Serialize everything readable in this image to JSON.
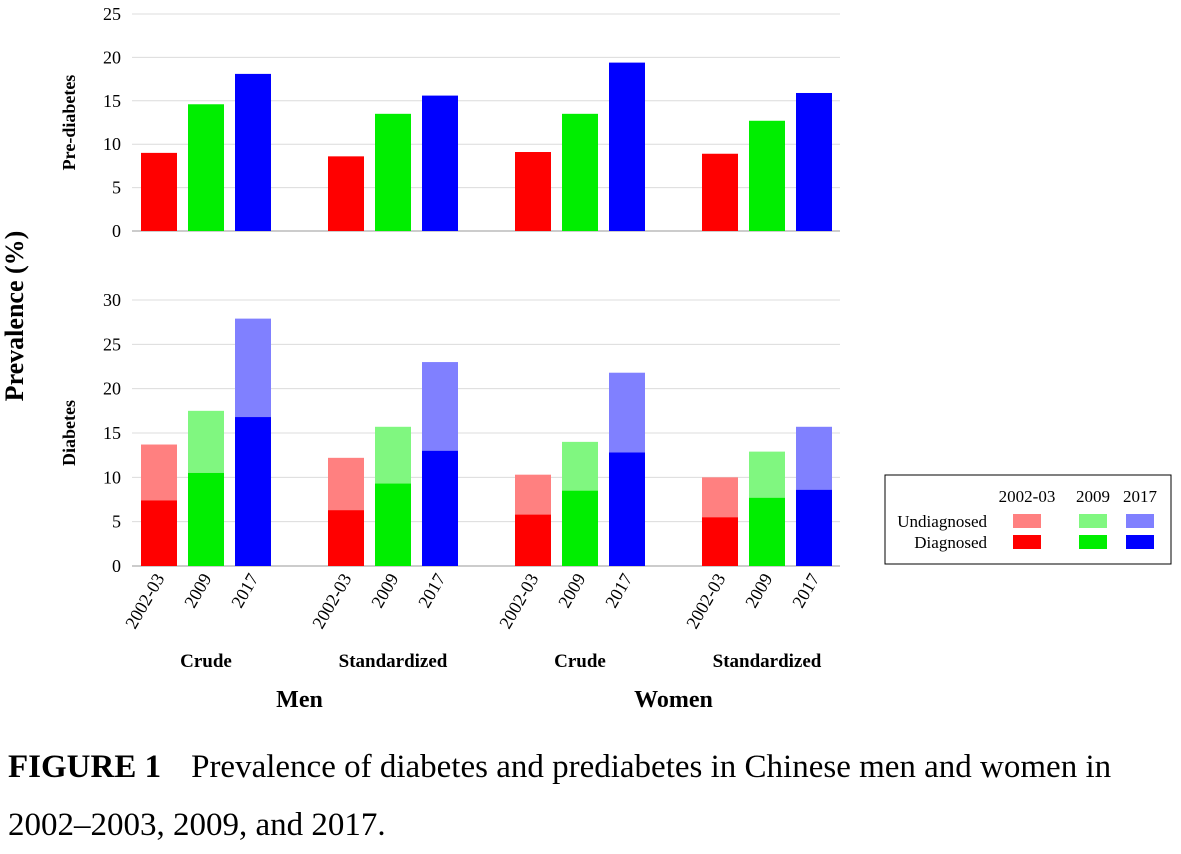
{
  "chart_data": {
    "type": "bar",
    "ylabel": "Prevalence (%)",
    "colors": {
      "2002-03": "#ff0000",
      "2009": "#00ee00",
      "2017": "#0000ff",
      "2002-03_light": "#ff8080",
      "2009_light": "#80f780",
      "2017_light": "#8080ff"
    },
    "sexes": [
      "Men",
      "Women"
    ],
    "groups": [
      {
        "sex": "Men",
        "label": "Crude"
      },
      {
        "sex": "Men",
        "label": "Standardized"
      },
      {
        "sex": "Women",
        "label": "Crude"
      },
      {
        "sex": "Women",
        "label": "Standardized"
      }
    ],
    "years": [
      "2002-03",
      "2009",
      "2017"
    ],
    "panels": [
      {
        "name": "Pre-diabetes",
        "ylim": [
          0,
          25
        ],
        "yticks": [
          0,
          5,
          10,
          15,
          20,
          25
        ],
        "stacked": false,
        "values": [
          [
            9.0,
            14.6,
            18.1
          ],
          [
            8.6,
            13.5,
            15.6
          ],
          [
            9.1,
            13.5,
            19.4
          ],
          [
            8.9,
            12.7,
            15.9
          ]
        ]
      },
      {
        "name": "Diabetes",
        "ylim": [
          0,
          30
        ],
        "yticks": [
          0,
          5,
          10,
          15,
          20,
          25,
          30
        ],
        "stacked": true,
        "diagnosed": [
          [
            7.4,
            10.5,
            16.8
          ],
          [
            6.3,
            9.3,
            13.0
          ],
          [
            5.8,
            8.5,
            12.8
          ],
          [
            5.5,
            7.7,
            8.6
          ]
        ],
        "total": [
          [
            13.7,
            17.5,
            27.9
          ],
          [
            12.2,
            15.7,
            23.0
          ],
          [
            10.3,
            14.0,
            21.8
          ],
          [
            10.0,
            12.9,
            15.7
          ]
        ]
      }
    ],
    "legend": {
      "headers": [
        "2002-03",
        "2009",
        "2017"
      ],
      "rows": [
        "Undiagnosed",
        "Diagnosed"
      ],
      "placement": "right"
    },
    "grid": true
  },
  "caption": {
    "label": "FIGURE 1",
    "text": "Prevalence of diabetes and prediabetes in Chinese men and women in 2002–2003, 2009, and 2017."
  }
}
